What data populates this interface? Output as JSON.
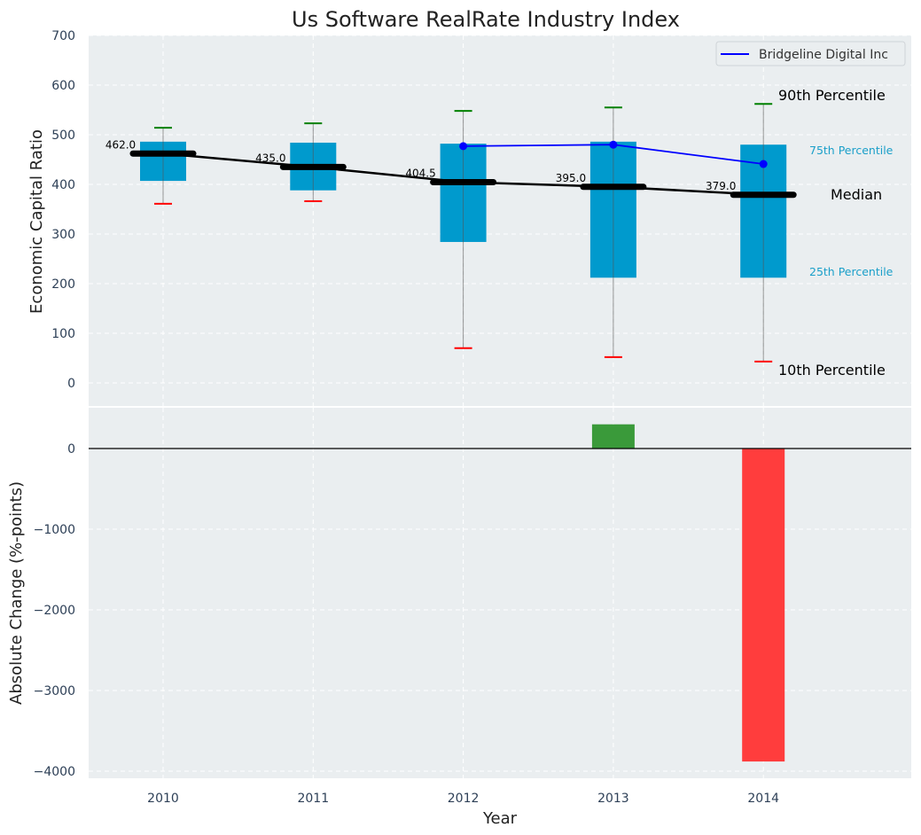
{
  "chart_data": [
    {
      "type": "box",
      "title": "Us Software RealRate Industry Index",
      "xlabel": "",
      "ylabel": "Economic Capital Ratio",
      "ylim": [
        -50,
        700
      ],
      "yticks": [
        0,
        100,
        200,
        300,
        400,
        500,
        600,
        700
      ],
      "categories": [
        "2010",
        "2011",
        "2012",
        "2013",
        "2014"
      ],
      "percentiles": {
        "p10": [
          361,
          366,
          70,
          52,
          43
        ],
        "p25": [
          407,
          388,
          284,
          212,
          212
        ],
        "median": [
          462.0,
          435.0,
          404.5,
          395.0,
          379.0
        ],
        "p75": [
          486,
          484,
          482,
          486,
          480
        ],
        "p90": [
          514,
          523,
          548,
          555,
          562
        ]
      },
      "median_labels": [
        "462.0",
        "435.0",
        "404.5",
        "395.0",
        "379.0"
      ],
      "series": [
        {
          "name": "Bridgeline Digital Inc",
          "type": "line",
          "color": "#0000ff",
          "categories": [
            "2012",
            "2013",
            "2014"
          ],
          "values": [
            477,
            480,
            441
          ]
        }
      ],
      "annotations": {
        "p90": "90th Percentile",
        "p75": "75th Percentile",
        "median": "Median",
        "p25": "25th Percentile",
        "p10": "10th Percentile"
      },
      "legend": {
        "position": "top-right",
        "entries": [
          "Bridgeline Digital Inc"
        ]
      },
      "grid": true,
      "colors": {
        "box": "#009acd",
        "median": "#000000",
        "p90": "#008000",
        "p10": "#ff0000",
        "company": "#0000ff",
        "background": "#eaeef0"
      }
    },
    {
      "type": "bar",
      "xlabel": "Year",
      "ylabel": "Absolute Change (%-points)",
      "ylim": [
        -4100,
        600
      ],
      "yticks": [
        0,
        -1000,
        -2000,
        -3000,
        -4000
      ],
      "ytick_labels": [
        "0",
        "−1000",
        "−2000",
        "−3000",
        "−4000"
      ],
      "categories": [
        "2010",
        "2011",
        "2012",
        "2013",
        "2014"
      ],
      "values": [
        null,
        null,
        null,
        300,
        -3880
      ],
      "colors": {
        "positive": "#3a9a3a",
        "negative": "#ff3d3d"
      },
      "grid": true
    }
  ]
}
